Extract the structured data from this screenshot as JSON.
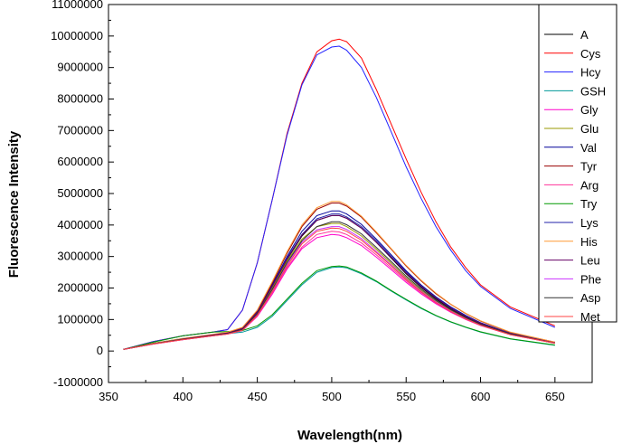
{
  "chart_data": {
    "type": "line",
    "title": "",
    "xlabel": "Wavelength(nm)",
    "ylabel": "Fluorescence Intensity",
    "xlim": [
      350,
      675
    ],
    "ylim": [
      -1000000,
      11000000
    ],
    "xticks": [
      350,
      400,
      450,
      500,
      550,
      600,
      650
    ],
    "yticks": [
      -1000000,
      0,
      1000000,
      2000000,
      3000000,
      4000000,
      5000000,
      6000000,
      7000000,
      8000000,
      9000000,
      10000000,
      11000000
    ],
    "xtick_labels": [
      "350",
      "400",
      "450",
      "500",
      "550",
      "600",
      "650"
    ],
    "ytick_labels": [
      "-1000000",
      "0",
      "1000000",
      "2000000",
      "3000000",
      "4000000",
      "5000000",
      "6000000",
      "7000000",
      "8000000",
      "9000000",
      "10000000",
      "11000000"
    ],
    "legend_position": "top-right",
    "x": [
      360,
      380,
      400,
      420,
      430,
      440,
      450,
      460,
      470,
      480,
      490,
      500,
      505,
      510,
      520,
      530,
      540,
      550,
      560,
      570,
      580,
      590,
      600,
      620,
      650
    ],
    "series": [
      {
        "name": "A",
        "color": "#000000",
        "values": [
          50000,
          230000,
          380000,
          520000,
          580000,
          700000,
          1200000,
          2000000,
          2900000,
          3650000,
          4150000,
          4300000,
          4300000,
          4220000,
          3900000,
          3450000,
          2950000,
          2450000,
          2020000,
          1650000,
          1340000,
          1080000,
          860000,
          540000,
          250000
        ]
      },
      {
        "name": "Cys",
        "color": "#ff0000",
        "values": [
          50000,
          300000,
          480000,
          600000,
          680000,
          1300000,
          2800000,
          4800000,
          6900000,
          8500000,
          9500000,
          9850000,
          9900000,
          9820000,
          9300000,
          8300000,
          7200000,
          6100000,
          5050000,
          4100000,
          3300000,
          2650000,
          2100000,
          1400000,
          800000
        ]
      },
      {
        "name": "Hcy",
        "color": "#2222ff",
        "values": [
          50000,
          300000,
          480000,
          600000,
          680000,
          1300000,
          2800000,
          4800000,
          6850000,
          8450000,
          9400000,
          9650000,
          9680000,
          9550000,
          9000000,
          8050000,
          6950000,
          5850000,
          4850000,
          3950000,
          3200000,
          2550000,
          2050000,
          1350000,
          750000
        ]
      },
      {
        "name": "GSH",
        "color": "#009999",
        "values": [
          50000,
          250000,
          400000,
          500000,
          550000,
          600000,
          750000,
          1100000,
          1600000,
          2100000,
          2500000,
          2650000,
          2670000,
          2640000,
          2450000,
          2200000,
          1900000,
          1620000,
          1350000,
          1120000,
          920000,
          750000,
          600000,
          380000,
          180000
        ]
      },
      {
        "name": "Gly",
        "color": "#ff00cc",
        "values": [
          50000,
          220000,
          360000,
          480000,
          540000,
          650000,
          1100000,
          1800000,
          2600000,
          3250000,
          3600000,
          3700000,
          3680000,
          3600000,
          3350000,
          2980000,
          2580000,
          2180000,
          1820000,
          1500000,
          1230000,
          1000000,
          810000,
          520000,
          250000
        ]
      },
      {
        "name": "Glu",
        "color": "#999900",
        "values": [
          50000,
          230000,
          380000,
          510000,
          570000,
          700000,
          1200000,
          2000000,
          2850000,
          3550000,
          3950000,
          4050000,
          4050000,
          3950000,
          3650000,
          3230000,
          2780000,
          2330000,
          1930000,
          1580000,
          1290000,
          1040000,
          840000,
          530000,
          250000
        ]
      },
      {
        "name": "Val",
        "color": "#000099",
        "values": [
          50000,
          240000,
          390000,
          520000,
          580000,
          720000,
          1250000,
          2100000,
          3000000,
          3800000,
          4300000,
          4450000,
          4450000,
          4350000,
          4020000,
          3550000,
          3050000,
          2550000,
          2100000,
          1720000,
          1400000,
          1130000,
          900000,
          560000,
          260000
        ]
      },
      {
        "name": "Tyr",
        "color": "#990000",
        "values": [
          50000,
          240000,
          390000,
          520000,
          590000,
          730000,
          1280000,
          2150000,
          3100000,
          3950000,
          4500000,
          4700000,
          4700000,
          4600000,
          4250000,
          3750000,
          3230000,
          2700000,
          2230000,
          1820000,
          1480000,
          1190000,
          950000,
          590000,
          280000
        ]
      },
      {
        "name": "Arg",
        "color": "#ff3399",
        "values": [
          50000,
          220000,
          360000,
          480000,
          540000,
          650000,
          1120000,
          1850000,
          2650000,
          3300000,
          3700000,
          3800000,
          3780000,
          3700000,
          3430000,
          3050000,
          2640000,
          2230000,
          1860000,
          1530000,
          1250000,
          1010000,
          820000,
          520000,
          250000
        ]
      },
      {
        "name": "Try",
        "color": "#009900",
        "values": [
          50000,
          280000,
          480000,
          600000,
          620000,
          650000,
          800000,
          1150000,
          1650000,
          2150000,
          2550000,
          2680000,
          2700000,
          2670000,
          2480000,
          2220000,
          1920000,
          1640000,
          1370000,
          1130000,
          930000,
          760000,
          610000,
          390000,
          190000
        ]
      },
      {
        "name": "Lys",
        "color": "#2222aa",
        "values": [
          50000,
          230000,
          380000,
          510000,
          570000,
          710000,
          1230000,
          2050000,
          2950000,
          3700000,
          4200000,
          4350000,
          4350000,
          4260000,
          3950000,
          3500000,
          3000000,
          2520000,
          2080000,
          1700000,
          1380000,
          1110000,
          890000,
          560000,
          260000
        ]
      },
      {
        "name": "His",
        "color": "#ff9933",
        "values": [
          50000,
          240000,
          400000,
          530000,
          600000,
          750000,
          1300000,
          2200000,
          3150000,
          4000000,
          4550000,
          4750000,
          4750000,
          4640000,
          4280000,
          3780000,
          3250000,
          2720000,
          2250000,
          1840000,
          1490000,
          1200000,
          960000,
          600000,
          280000
        ]
      },
      {
        "name": "Leu",
        "color": "#660066",
        "values": [
          50000,
          230000,
          380000,
          510000,
          570000,
          710000,
          1220000,
          2050000,
          2920000,
          3680000,
          4150000,
          4300000,
          4300000,
          4210000,
          3900000,
          3450000,
          2970000,
          2480000,
          2050000,
          1680000,
          1360000,
          1100000,
          880000,
          550000,
          260000
        ]
      },
      {
        "name": "Phe",
        "color": "#cc33ff",
        "values": [
          50000,
          220000,
          360000,
          480000,
          540000,
          660000,
          1150000,
          1900000,
          2750000,
          3450000,
          3850000,
          3950000,
          3950000,
          3860000,
          3570000,
          3160000,
          2730000,
          2290000,
          1900000,
          1560000,
          1270000,
          1030000,
          830000,
          530000,
          250000
        ]
      },
      {
        "name": "Asp",
        "color": "#333333",
        "values": [
          50000,
          230000,
          370000,
          490000,
          550000,
          680000,
          1180000,
          1950000,
          2800000,
          3500000,
          3950000,
          4100000,
          4100000,
          4010000,
          3720000,
          3290000,
          2840000,
          2380000,
          1970000,
          1610000,
          1310000,
          1060000,
          850000,
          540000,
          250000
        ]
      },
      {
        "name": "Met",
        "color": "#ff4444",
        "values": [
          50000,
          220000,
          360000,
          480000,
          540000,
          660000,
          1140000,
          1880000,
          2700000,
          3400000,
          3800000,
          3900000,
          3890000,
          3800000,
          3520000,
          3120000,
          2700000,
          2270000,
          1880000,
          1540000,
          1260000,
          1020000,
          820000,
          520000,
          250000
        ]
      }
    ]
  }
}
